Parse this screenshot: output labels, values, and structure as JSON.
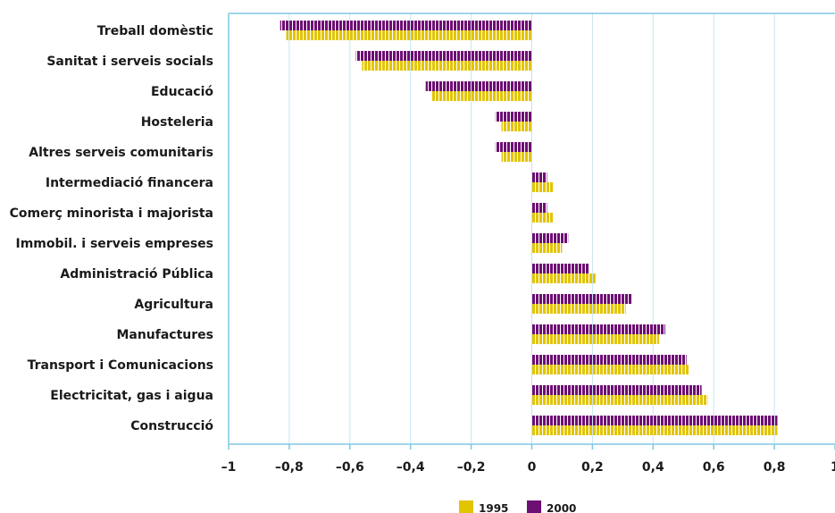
{
  "chart_data": {
    "type": "bar",
    "orientation": "horizontal",
    "categories": [
      "Treball domèstic",
      "Sanitat i serveis socials",
      "Educació",
      "Hosteleria",
      "Altres serveis comunitaris",
      "Intermediació financera",
      "Comerç minorista i majorista",
      "Immobil. i serveis empreses",
      "Administració Pública",
      "Agricultura",
      "Manufactures",
      "Transport i Comunicacions",
      "Electricitat, gas i aigua",
      "Construcció"
    ],
    "series": [
      {
        "name": "1995",
        "color": "#e2c400",
        "values": [
          -0.81,
          -0.56,
          -0.33,
          -0.1,
          -0.1,
          0.07,
          0.07,
          0.1,
          0.21,
          0.31,
          0.42,
          0.52,
          0.58,
          0.81
        ]
      },
      {
        "name": "2000",
        "color": "#6d0f73",
        "values": [
          -0.83,
          -0.58,
          -0.35,
          -0.12,
          -0.12,
          0.05,
          0.05,
          0.12,
          0.19,
          0.33,
          0.44,
          0.51,
          0.56,
          0.81
        ]
      }
    ],
    "xlim": [
      -1,
      1
    ],
    "xticks": [
      -1,
      -0.8,
      -0.6,
      -0.4,
      -0.2,
      0,
      0.2,
      0.4,
      0.6,
      0.8,
      1
    ],
    "xtick_labels": [
      "–1",
      "–0,8",
      "–0,6",
      "–0,4",
      "–0,2",
      "0",
      "0,2",
      "0,4",
      "0,6",
      "0,8",
      "1"
    ],
    "grid": true,
    "legend_position": "bottom-center",
    "title": "",
    "xlabel": "",
    "ylabel": "",
    "colors": {
      "frame": "#7ec8e3",
      "grid": "#c6e6f3"
    }
  }
}
